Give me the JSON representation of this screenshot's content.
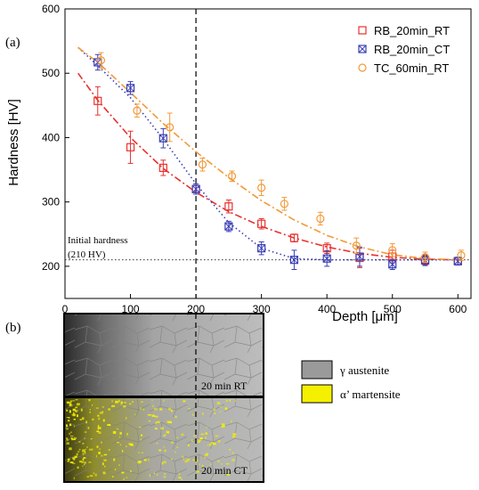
{
  "panel_labels": {
    "a": "(a)",
    "b": "(b)"
  },
  "chart_data": {
    "type": "scatter",
    "xlabel": "Depth [μm]",
    "ylabel": "Hardness [HV]",
    "xlim": [
      0,
      620
    ],
    "ylim": [
      150,
      600
    ],
    "x_ticks": [
      "0",
      "100",
      "200",
      "300",
      "400",
      "500",
      "600"
    ],
    "y_ticks": [
      "200",
      "300",
      "400",
      "500",
      "600"
    ],
    "legend_position": "top-right",
    "series": [
      {
        "name": "RB_20min_RT",
        "marker": "square",
        "color": "#e8312f",
        "line_style": "dash-dot",
        "points": [
          {
            "x": 50,
            "y": 457,
            "err": 22
          },
          {
            "x": 100,
            "y": 385,
            "err": 25
          },
          {
            "x": 150,
            "y": 353,
            "err": 12
          },
          {
            "x": 200,
            "y": 320,
            "err": 8
          },
          {
            "x": 250,
            "y": 293,
            "err": 10
          },
          {
            "x": 300,
            "y": 266,
            "err": 8
          },
          {
            "x": 350,
            "y": 244,
            "err": 6
          },
          {
            "x": 400,
            "y": 228,
            "err": 8
          },
          {
            "x": 450,
            "y": 213,
            "err": 15
          },
          {
            "x": 500,
            "y": 215,
            "err": 10
          },
          {
            "x": 550,
            "y": 210,
            "err": 8
          },
          {
            "x": 600,
            "y": 208,
            "err": 6
          }
        ],
        "fit": [
          [
            20,
            500
          ],
          [
            50,
            458
          ],
          [
            100,
            400
          ],
          [
            150,
            352
          ],
          [
            200,
            315
          ],
          [
            250,
            285
          ],
          [
            300,
            262
          ],
          [
            350,
            244
          ],
          [
            400,
            230
          ],
          [
            450,
            220
          ],
          [
            500,
            214
          ],
          [
            550,
            211
          ],
          [
            600,
            210
          ]
        ]
      },
      {
        "name": "RB_20min_CT",
        "marker": "square-x",
        "color": "#3b3fb5",
        "line_style": "dotted",
        "points": [
          {
            "x": 50,
            "y": 517,
            "err": 12
          },
          {
            "x": 100,
            "y": 477,
            "err": 10
          },
          {
            "x": 150,
            "y": 399,
            "err": 15
          },
          {
            "x": 200,
            "y": 320,
            "err": 8
          },
          {
            "x": 250,
            "y": 262,
            "err": 8
          },
          {
            "x": 300,
            "y": 228,
            "err": 10
          },
          {
            "x": 350,
            "y": 210,
            "err": 15
          },
          {
            "x": 400,
            "y": 212,
            "err": 12
          },
          {
            "x": 450,
            "y": 215,
            "err": 15
          },
          {
            "x": 500,
            "y": 203,
            "err": 8
          },
          {
            "x": 550,
            "y": 209,
            "err": 8
          },
          {
            "x": 600,
            "y": 208,
            "err": 6
          }
        ],
        "fit": [
          [
            20,
            540
          ],
          [
            50,
            512
          ],
          [
            100,
            462
          ],
          [
            150,
            398
          ],
          [
            200,
            328
          ],
          [
            250,
            268
          ],
          [
            300,
            228
          ],
          [
            350,
            212
          ],
          [
            400,
            210
          ],
          [
            450,
            210
          ],
          [
            500,
            210
          ],
          [
            550,
            210
          ],
          [
            600,
            210
          ]
        ]
      },
      {
        "name": "TC_60min_RT",
        "marker": "circle",
        "color": "#f29a38",
        "line_style": "dash-dot",
        "points": [
          {
            "x": 55,
            "y": 520,
            "err": 12
          },
          {
            "x": 110,
            "y": 442,
            "err": 10
          },
          {
            "x": 160,
            "y": 416,
            "err": 22
          },
          {
            "x": 210,
            "y": 358,
            "err": 10
          },
          {
            "x": 255,
            "y": 340,
            "err": 8
          },
          {
            "x": 300,
            "y": 322,
            "err": 12
          },
          {
            "x": 335,
            "y": 297,
            "err": 10
          },
          {
            "x": 390,
            "y": 274,
            "err": 10
          },
          {
            "x": 445,
            "y": 232,
            "err": 12
          },
          {
            "x": 500,
            "y": 225,
            "err": 10
          },
          {
            "x": 550,
            "y": 214,
            "err": 8
          },
          {
            "x": 605,
            "y": 217,
            "err": 8
          }
        ],
        "fit": [
          [
            20,
            540
          ],
          [
            50,
            517
          ],
          [
            100,
            470
          ],
          [
            150,
            422
          ],
          [
            200,
            378
          ],
          [
            250,
            338
          ],
          [
            300,
            302
          ],
          [
            350,
            272
          ],
          [
            400,
            248
          ],
          [
            450,
            230
          ],
          [
            500,
            218
          ],
          [
            550,
            212
          ],
          [
            600,
            210
          ]
        ]
      }
    ],
    "reference_lines": [
      {
        "orientation": "horizontal",
        "value": 210,
        "style": "dotted",
        "label_line1": "Initial hardness",
        "label_line2": "(210 HV)"
      },
      {
        "orientation": "vertical",
        "value": 200,
        "style": "dashed"
      }
    ]
  },
  "micrographs": {
    "top_label": "20 min RT",
    "top_label_color": "#e8312f",
    "bottom_label": "20 min CT",
    "bottom_label_color": "#3b3fb5",
    "legend": [
      {
        "swatch_color": "#9a9a9a",
        "label": "γ austenite"
      },
      {
        "swatch_color": "#f4f000",
        "label": "α’ martensite"
      }
    ]
  }
}
